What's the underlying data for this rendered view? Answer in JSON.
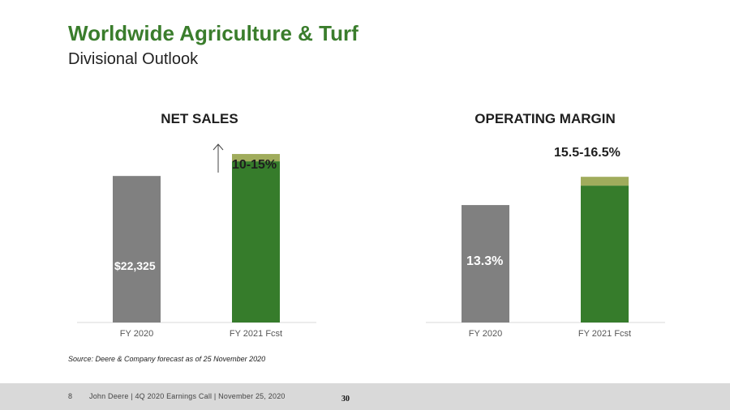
{
  "header": {
    "title": "Worldwide Agriculture & Turf",
    "subtitle": "Divisional Outlook"
  },
  "charts": {
    "net_sales": {
      "heading": "NET SALES"
    },
    "operating_margin": {
      "heading": "OPERATING MARGIN"
    }
  },
  "source_note": "Source: Deere & Company forecast as of 25 November 2020",
  "footer": {
    "page_number": "8",
    "text": "John Deere | 4Q 2020 Earnings Call | November 25, 2020",
    "stamp": "30"
  },
  "colors": {
    "title_green": "#3a7d2c",
    "bar_gray": "#808080",
    "bar_green": "#367c2b",
    "range_olive": "#a0ac5c",
    "footer_gray": "#d9d9d9"
  },
  "chart_data": [
    {
      "type": "bar",
      "title": "NET SALES",
      "categories": [
        "FY 2020",
        "FY 2021 Fcst"
      ],
      "values": [
        22325,
        24558
      ],
      "range_top": 25674,
      "data_labels": [
        "$22,325",
        "10-15%"
      ],
      "direction_indicator": "up-arrow",
      "ylim": [
        0,
        30000
      ],
      "grid": false,
      "legend": "none"
    },
    {
      "type": "bar",
      "title": "OPERATING MARGIN",
      "categories": [
        "FY 2020",
        "FY 2021 Fcst"
      ],
      "values": [
        13.3,
        15.5
      ],
      "range_top": 16.5,
      "data_labels": [
        "13.3%",
        "15.5-16.5%"
      ],
      "ylim": [
        0,
        22.3
      ],
      "grid": false,
      "legend": "none"
    }
  ]
}
